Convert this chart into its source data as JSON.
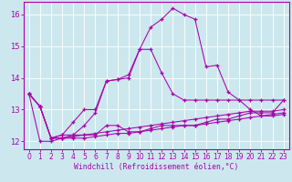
{
  "xlabel": "Windchill (Refroidissement éolien,°C)",
  "bg_color": "#cce8ee",
  "line_color": "#aa00aa",
  "x_values": [
    0,
    1,
    2,
    3,
    4,
    5,
    6,
    7,
    8,
    9,
    10,
    11,
    12,
    13,
    14,
    15,
    16,
    17,
    18,
    19,
    20,
    21,
    22,
    23
  ],
  "lines": [
    [
      13.5,
      13.1,
      12.1,
      12.2,
      12.6,
      13.0,
      13.0,
      13.9,
      13.95,
      14.1,
      14.9,
      14.9,
      14.15,
      13.5,
      13.3,
      13.3,
      13.3,
      13.3,
      13.3,
      13.3,
      13.3,
      13.3,
      13.3,
      13.3
    ],
    [
      13.5,
      13.1,
      12.1,
      12.2,
      12.2,
      12.2,
      12.2,
      12.5,
      12.5,
      12.3,
      12.3,
      12.4,
      12.5,
      12.5,
      12.5,
      12.5,
      12.6,
      12.7,
      12.7,
      12.8,
      12.9,
      12.9,
      12.9,
      13.3
    ],
    [
      13.5,
      12.0,
      12.0,
      12.1,
      12.2,
      12.5,
      12.9,
      13.9,
      13.95,
      14.0,
      14.9,
      15.6,
      15.85,
      16.2,
      16.0,
      15.85,
      14.35,
      14.4,
      13.55,
      13.3,
      13.0,
      12.8,
      12.85,
      12.9
    ],
    [
      13.5,
      13.1,
      12.1,
      12.1,
      12.15,
      12.2,
      12.25,
      12.3,
      12.35,
      12.4,
      12.45,
      12.5,
      12.55,
      12.6,
      12.65,
      12.7,
      12.75,
      12.8,
      12.85,
      12.9,
      12.95,
      12.95,
      12.95,
      13.0
    ],
    [
      13.5,
      13.1,
      12.1,
      12.1,
      12.1,
      12.1,
      12.15,
      12.2,
      12.25,
      12.25,
      12.3,
      12.35,
      12.4,
      12.45,
      12.5,
      12.5,
      12.55,
      12.6,
      12.65,
      12.7,
      12.75,
      12.8,
      12.8,
      12.85
    ]
  ],
  "ylim": [
    11.75,
    16.4
  ],
  "yticks": [
    12,
    13,
    14,
    15,
    16
  ],
  "xlim": [
    -0.5,
    23.5
  ],
  "xticks": [
    0,
    1,
    2,
    3,
    4,
    5,
    6,
    7,
    8,
    9,
    10,
    11,
    12,
    13,
    14,
    15,
    16,
    17,
    18,
    19,
    20,
    21,
    22,
    23
  ],
  "tick_fontsize": 5.5,
  "xlabel_fontsize": 5.8,
  "grid_color": "#ffffff",
  "spine_color": "#aa00aa"
}
